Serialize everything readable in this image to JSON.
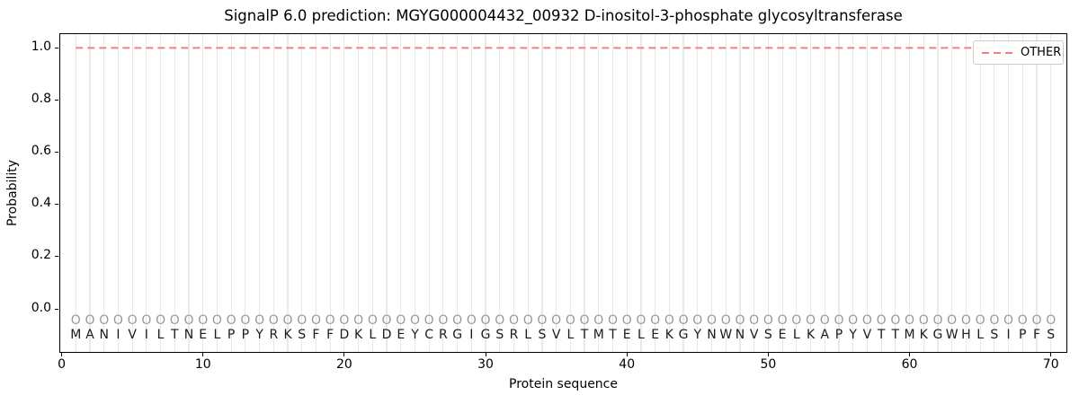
{
  "colors": {
    "other_line": "#f28080",
    "grid": "#e9e9e9",
    "pred_label": "#999999",
    "sequence_letter": "#1a1a1a",
    "spine": "#000000",
    "legend_border": "#cccccc"
  },
  "chart_data": {
    "type": "line",
    "title": "SignalP 6.0 prediction: MGYG000004432_00932 D-inositol-3-phosphate glycosyltransferase",
    "xlabel": "Protein sequence",
    "ylabel": "Probability",
    "x": [
      1,
      2,
      3,
      4,
      5,
      6,
      7,
      8,
      9,
      10,
      11,
      12,
      13,
      14,
      15,
      16,
      17,
      18,
      19,
      20,
      21,
      22,
      23,
      24,
      25,
      26,
      27,
      28,
      29,
      30,
      31,
      32,
      33,
      34,
      35,
      36,
      37,
      38,
      39,
      40,
      41,
      42,
      43,
      44,
      45,
      46,
      47,
      48,
      49,
      50,
      51,
      52,
      53,
      54,
      55,
      56,
      57,
      58,
      59,
      60,
      61,
      62,
      63,
      64,
      65,
      66,
      67,
      68,
      69,
      70
    ],
    "series": [
      {
        "name": "OTHER",
        "color": "#f28080",
        "style": "dashed",
        "values": [
          1.0,
          1.0,
          1.0,
          1.0,
          1.0,
          1.0,
          1.0,
          1.0,
          1.0,
          1.0,
          1.0,
          1.0,
          1.0,
          1.0,
          1.0,
          1.0,
          1.0,
          1.0,
          1.0,
          1.0,
          1.0,
          1.0,
          1.0,
          1.0,
          1.0,
          1.0,
          1.0,
          1.0,
          1.0,
          1.0,
          1.0,
          1.0,
          1.0,
          1.0,
          1.0,
          1.0,
          1.0,
          1.0,
          1.0,
          1.0,
          1.0,
          1.0,
          1.0,
          1.0,
          1.0,
          1.0,
          1.0,
          1.0,
          1.0,
          1.0,
          1.0,
          1.0,
          1.0,
          1.0,
          1.0,
          1.0,
          1.0,
          1.0,
          1.0,
          1.0,
          1.0,
          1.0,
          1.0,
          1.0,
          1.0,
          1.0,
          1.0,
          1.0,
          1.0,
          1.0
        ]
      }
    ],
    "sequence": "MANIVILTNELPPYRKSFFDKLDEYCRGIGSRLSVLTMTELEKGYNWNVSELKAPYVTTMKGWHLSIPFS",
    "predicted_labels": "OOOOOOOOOOOOOOOOOOOOOOOOOOOOOOOOOOOOOOOOOOOOOOOOOOOOOOOOOOOOOOOOOOOOOO",
    "xticks": [
      0,
      10,
      20,
      30,
      40,
      50,
      60,
      70
    ],
    "yticks": [
      {
        "v": 0.0,
        "label": "0.0"
      },
      {
        "v": 0.2,
        "label": "0.2"
      },
      {
        "v": 0.4,
        "label": "0.4"
      },
      {
        "v": 0.6,
        "label": "0.6"
      },
      {
        "v": 0.8,
        "label": "0.8"
      },
      {
        "v": 1.0,
        "label": "1.0"
      }
    ],
    "xlim": [
      -0.1,
      71.1
    ],
    "ylim": [
      -0.165,
      1.053
    ],
    "pred_row_y": -0.045,
    "seq_row_y": -0.1,
    "grid": true,
    "legend_position": "upper right"
  }
}
